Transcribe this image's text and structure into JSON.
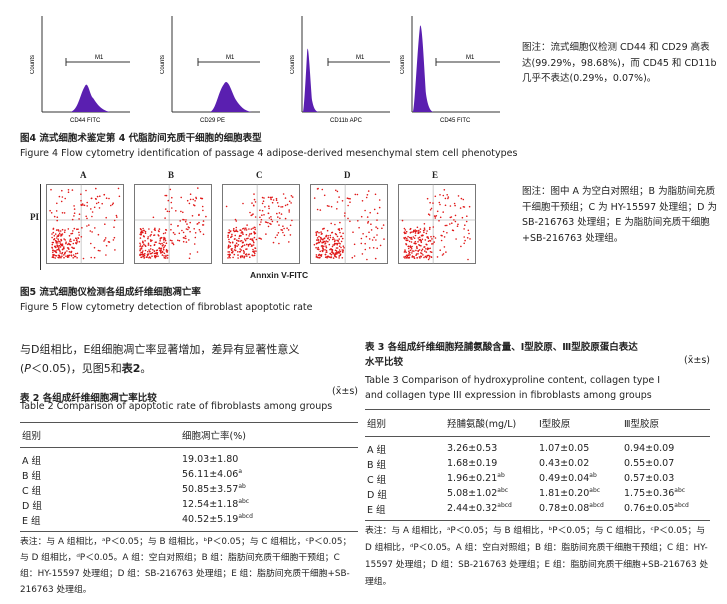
{
  "fig4": {
    "panels": [
      {
        "xlabel": "CD44 FITC",
        "gate": "M1"
      },
      {
        "xlabel": "CD29 PE",
        "gate": "M1"
      },
      {
        "xlabel": "CD11b APC",
        "gate": "M1"
      },
      {
        "xlabel": "CD45 FITC",
        "gate": "M1"
      }
    ],
    "ylabel": "Counts",
    "note": "图注：流式细胞仪检测 CD44 和 CD29 高表达(99.29%，98.68%)，而 CD45 和 CD11b 几乎不表达(0.29%，0.07%)。",
    "caption_cn": "图4   流式细胞术鉴定第 4 代脂肪间充质干细胞的细胞表型",
    "caption_en": "Figure 4   Flow cytometry identification of passage 4 adipose-derived mesenchymal stem cell phenotypes"
  },
  "fig5": {
    "panels": [
      "A",
      "B",
      "C",
      "D",
      "E"
    ],
    "ylabel": "PI",
    "xlabel": "Annxin V-FITC",
    "note": "图注：图中 A 为空白对照组；B 为脂肪间充质干细胞干预组；C 为 HY-15597 处理组；D 为 SB-216763 处理组；E 为脂肪间充质干细胞+SB-216763 处理组。",
    "caption_cn": "图5   流式细胞仪检测各组成纤维细胞凋亡率",
    "caption_en": "Figure 5   Flow cytometry detection of fibroblast apoptotic rate"
  },
  "body_text": {
    "line1": "与D组相比，E组细胞凋亡率显著增加，差异有显著性意义",
    "line2_a": "(",
    "line2_p": "P",
    "line2_b": "＜0.05)，见图5和",
    "line2_bold": "表2",
    "line2_c": "。"
  },
  "table2": {
    "title_cn": "表 2   各组成纤维细胞凋亡率比较",
    "stat": "(x̄±s)",
    "title_en": "Table 2   Comparison of apoptotic rate of fibroblasts among groups",
    "headers": [
      "组别",
      "细胞凋亡率(%)"
    ],
    "rows": [
      {
        "group": "A 组",
        "value": "19.03±1.80",
        "sup": ""
      },
      {
        "group": "B 组",
        "value": "56.11±4.06",
        "sup": "a"
      },
      {
        "group": "C 组",
        "value": "50.85±3.57",
        "sup": "ab"
      },
      {
        "group": "D 组",
        "value": "12.54±1.18",
        "sup": "abc"
      },
      {
        "group": "E 组",
        "value": "40.52±5.19",
        "sup": "abcd"
      }
    ],
    "note": "表注：与 A 组相比，ᵃP＜0.05；与 B 组相比，ᵇP＜0.05；与 C 组相比，ᶜP＜0.05；与 D 组相比，ᵈP＜0.05。A 组：空白对照组；B 组：脂肪间充质干细胞干预组；C 组：HY-15597 处理组；D 组：SB-216763 处理组；E 组：脂肪间充质干细胞+SB-216763 处理组。"
  },
  "table3": {
    "title_cn_1": "表 3   各组成纤维细胞羟脯氨酸含量、Ⅰ型胶原、Ⅲ型胶原蛋白表达",
    "title_cn_2": "水平比较",
    "stat": "(x̄±s)",
    "title_en_1": "Table 3   Comparison of hydroxyproline content, collagen type I",
    "title_en_2": "and collagen type III expression in fibroblasts among groups",
    "headers": [
      "组别",
      "羟脯氨酸(mg/L)",
      "Ⅰ型胶原",
      "Ⅲ型胶原"
    ],
    "rows": [
      {
        "group": "A 组",
        "hyp": "3.26±0.53",
        "hyp_sup": "",
        "c1": "1.07±0.05",
        "c1_sup": "",
        "c3": "0.94±0.09",
        "c3_sup": ""
      },
      {
        "group": "B 组",
        "hyp": "1.68±0.19",
        "hyp_sup": "",
        "c1": "0.43±0.02",
        "c1_sup": "",
        "c3": "0.55±0.07",
        "c3_sup": ""
      },
      {
        "group": "C 组",
        "hyp": "1.96±0.21",
        "hyp_sup": "ab",
        "c1": "0.49±0.04",
        "c1_sup": "ab",
        "c3": "0.57±0.03",
        "c3_sup": ""
      },
      {
        "group": "D 组",
        "hyp": "5.08±1.02",
        "hyp_sup": "abc",
        "c1": "1.81±0.20",
        "c1_sup": "abc",
        "c3": "1.75±0.36",
        "c3_sup": "abc"
      },
      {
        "group": "E 组",
        "hyp": "2.44±0.32",
        "hyp_sup": "abcd",
        "c1": "0.78±0.08",
        "c1_sup": "abcd",
        "c3": "0.76±0.05",
        "c3_sup": "abcd"
      }
    ],
    "note": "表注：与 A 组相比，ᵃP＜0.05；与 B 组相比，ᵇP＜0.05；与 C 组相比，ᶜP＜0.05；与 D 组相比，ᵈP＜0.05。A 组：空白对照组；B 组：脂肪间充质干细胞干预组；C 组：HY-15597 处理组；D 组：SB-216763 处理组；E 组：脂肪间充质干细胞+SB-216763 处理组。"
  },
  "colors": {
    "histogram_fill": "#5a1fb0",
    "dot_red": "#e01818"
  }
}
